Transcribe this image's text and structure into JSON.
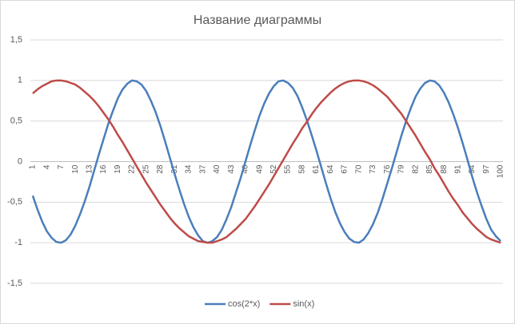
{
  "chart_data": {
    "type": "line",
    "title": "Название диаграммы",
    "categories": [
      "1",
      null,
      null,
      "4",
      null,
      null,
      "7",
      null,
      null,
      "10",
      null,
      null,
      "13",
      null,
      null,
      "16",
      null,
      null,
      "19",
      null,
      null,
      "22",
      null,
      null,
      "25",
      null,
      null,
      "28",
      null,
      null,
      "31",
      null,
      null,
      "34",
      null,
      null,
      "37",
      null,
      null,
      "40",
      null,
      null,
      "43",
      null,
      null,
      "46",
      null,
      null,
      "49",
      null,
      null,
      "52",
      null,
      null,
      "55",
      null,
      null,
      "58",
      null,
      null,
      "61",
      null,
      null,
      "64",
      null,
      null,
      "67",
      null,
      null,
      "70",
      null,
      null,
      "73",
      null,
      null,
      "76",
      null,
      null,
      "79",
      null,
      null,
      "82",
      null,
      null,
      "85",
      null,
      null,
      "88",
      null,
      null,
      "91",
      null,
      null,
      "94",
      null,
      null,
      "97",
      null,
      null,
      "100"
    ],
    "series": [
      {
        "name": "cos(2*x)",
        "color": "#4a7ebb",
        "values": [
          -0.42,
          -0.59,
          -0.74,
          -0.86,
          -0.94,
          -0.99,
          -1.0,
          -0.97,
          -0.9,
          -0.79,
          -0.65,
          -0.49,
          -0.31,
          -0.11,
          0.09,
          0.28,
          0.47,
          0.63,
          0.78,
          0.89,
          0.96,
          1.0,
          0.99,
          0.95,
          0.87,
          0.75,
          0.61,
          0.44,
          0.25,
          0.05,
          -0.15,
          -0.34,
          -0.52,
          -0.68,
          -0.81,
          -0.91,
          -0.98,
          -1.0,
          -0.98,
          -0.93,
          -0.84,
          -0.71,
          -0.56,
          -0.38,
          -0.2,
          0.0,
          0.2,
          0.39,
          0.57,
          0.72,
          0.84,
          0.93,
          0.99,
          1.0,
          0.97,
          0.91,
          0.81,
          0.67,
          0.51,
          0.33,
          0.14,
          -0.06,
          -0.26,
          -0.45,
          -0.62,
          -0.76,
          -0.87,
          -0.95,
          -0.99,
          -1.0,
          -0.96,
          -0.88,
          -0.77,
          -0.63,
          -0.46,
          -0.27,
          -0.08,
          0.12,
          0.32,
          0.5,
          0.66,
          0.8,
          0.9,
          0.97,
          1.0,
          0.99,
          0.94,
          0.85,
          0.73,
          0.58,
          0.41,
          0.22,
          0.02,
          -0.19,
          -0.38,
          -0.55,
          -0.71,
          -0.84,
          -0.92,
          -0.98
        ]
      },
      {
        "name": "sin(x)",
        "color": "#be4b48",
        "values": [
          0.84,
          0.89,
          0.93,
          0.96,
          0.99,
          1.0,
          1.0,
          0.99,
          0.97,
          0.95,
          0.91,
          0.86,
          0.81,
          0.75,
          0.68,
          0.6,
          0.52,
          0.43,
          0.33,
          0.24,
          0.14,
          0.04,
          -0.06,
          -0.16,
          -0.26,
          -0.35,
          -0.44,
          -0.53,
          -0.61,
          -0.69,
          -0.76,
          -0.82,
          -0.87,
          -0.92,
          -0.95,
          -0.98,
          -0.99,
          -1.0,
          -1.0,
          -0.98,
          -0.96,
          -0.93,
          -0.88,
          -0.83,
          -0.77,
          -0.71,
          -0.63,
          -0.55,
          -0.46,
          -0.37,
          -0.28,
          -0.18,
          -0.08,
          0.02,
          0.12,
          0.22,
          0.31,
          0.41,
          0.49,
          0.58,
          0.66,
          0.73,
          0.79,
          0.85,
          0.9,
          0.94,
          0.97,
          0.99,
          1.0,
          1.0,
          0.99,
          0.97,
          0.94,
          0.9,
          0.85,
          0.8,
          0.73,
          0.66,
          0.59,
          0.5,
          0.41,
          0.32,
          0.22,
          0.12,
          0.03,
          -0.08,
          -0.17,
          -0.27,
          -0.37,
          -0.46,
          -0.54,
          -0.63,
          -0.7,
          -0.77,
          -0.83,
          -0.88,
          -0.93,
          -0.96,
          -0.98,
          -1.0
        ]
      }
    ],
    "ylim": [
      -1.5,
      1.5
    ],
    "yticks": [
      {
        "value": -1.5,
        "label": "-1,5"
      },
      -1,
      {
        "value": -0.5,
        "label": "-0,5"
      },
      0,
      {
        "value": 0.5,
        "label": "0,5"
      },
      1,
      {
        "value": 1.5,
        "label": "1,5"
      }
    ],
    "grid": true,
    "legend": "bottom"
  }
}
